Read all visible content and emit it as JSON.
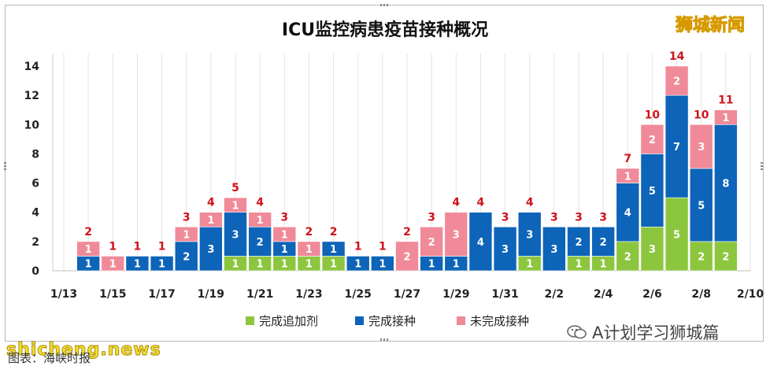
{
  "watermarks": {
    "top_right": "狮城新闻",
    "bottom_left": "shicheng.news",
    "bottom_right": "A计划学习狮城篇",
    "bottom_right_icon": "wechat-icon"
  },
  "caption": "图表：海峡时报",
  "colors": {
    "booster": "#8cc63f",
    "full": "#0d64b8",
    "incomplete": "#f08a99",
    "total_label": "#d0121b"
  },
  "chart_data": {
    "type": "bar",
    "stacked": true,
    "title": "ICU监控病患疫苗接种概况",
    "xlabel": "",
    "ylabel": "",
    "ylim": [
      0,
      15
    ],
    "yticks": [
      0,
      2,
      4,
      6,
      8,
      10,
      12,
      14
    ],
    "grid": "vertical",
    "legend_position": "bottom",
    "categories": [
      "1/13",
      "1/14",
      "1/15",
      "1/16",
      "1/17",
      "1/18",
      "1/19",
      "1/20",
      "1/21",
      "1/22",
      "1/23",
      "1/24",
      "1/25",
      "1/26",
      "1/27",
      "1/28",
      "1/29",
      "1/30",
      "1/31",
      "2/1",
      "2/2",
      "2/3",
      "2/4",
      "2/5",
      "2/6",
      "2/7",
      "2/8",
      "2/9",
      "2/10"
    ],
    "x_tick_labels": [
      "1/13",
      "1/15",
      "1/17",
      "1/19",
      "1/21",
      "1/23",
      "1/25",
      "1/27",
      "1/29",
      "1/31",
      "2/2",
      "2/4",
      "2/6",
      "2/8",
      "2/10"
    ],
    "series": [
      {
        "name": "完成追加剂",
        "color_key": "booster",
        "values": [
          null,
          0,
          0,
          0,
          0,
          0,
          0,
          1,
          1,
          1,
          1,
          1,
          0,
          0,
          0,
          0,
          0,
          0,
          0,
          1,
          0,
          1,
          1,
          2,
          3,
          5,
          2,
          2,
          null
        ]
      },
      {
        "name": "完成接种",
        "color_key": "full",
        "values": [
          null,
          1,
          0,
          1,
          1,
          2,
          3,
          3,
          2,
          1,
          0,
          1,
          1,
          1,
          0,
          1,
          1,
          4,
          3,
          3,
          3,
          2,
          2,
          4,
          5,
          7,
          5,
          8,
          null
        ]
      },
      {
        "name": "未完成接种",
        "color_key": "incomplete",
        "values": [
          null,
          1,
          1,
          0,
          0,
          1,
          1,
          1,
          1,
          1,
          1,
          0,
          0,
          0,
          2,
          2,
          3,
          0,
          0,
          0,
          0,
          0,
          0,
          1,
          2,
          2,
          3,
          1,
          null
        ]
      }
    ],
    "totals": [
      null,
      2,
      1,
      1,
      1,
      3,
      4,
      5,
      4,
      3,
      2,
      2,
      1,
      1,
      2,
      3,
      4,
      4,
      3,
      4,
      3,
      3,
      3,
      7,
      10,
      14,
      10,
      11,
      null
    ]
  }
}
